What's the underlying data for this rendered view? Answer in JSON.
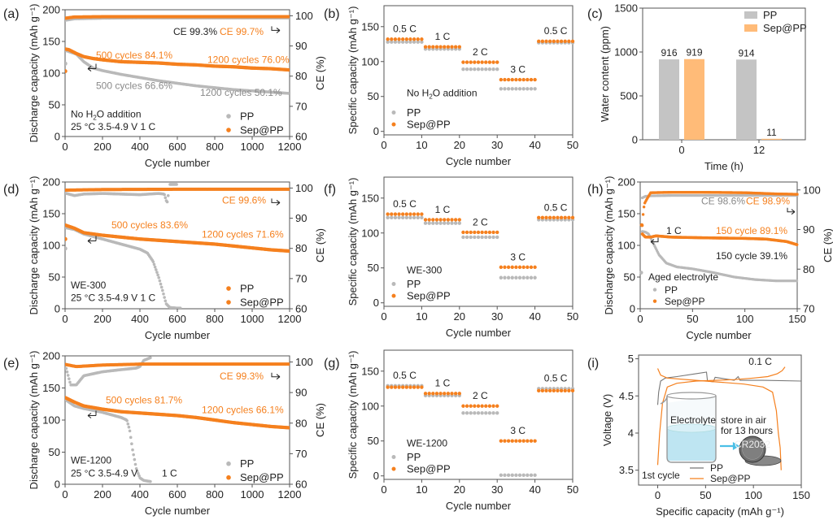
{
  "colors": {
    "pp": "#b9b9b9",
    "sep": "#f5801e",
    "sep_bar": "#ffbb78",
    "pp_bar": "#c4c4c4",
    "text": "#222222",
    "arrow": "#4bbfe6"
  },
  "chart_data": [
    {
      "id": "a",
      "panel_label": "(a)",
      "type": "scatter",
      "xlabel": "Cycle number",
      "ylabel": "Discharge capacity (mAh g-1)",
      "y2label": "CE (%)",
      "xlim": [
        0,
        1200
      ],
      "ylim": [
        0,
        200
      ],
      "y2lim": [
        60,
        102
      ],
      "xticks": [
        0,
        200,
        400,
        600,
        800,
        1000,
        1200
      ],
      "yticks": [
        0,
        50,
        100,
        150,
        200
      ],
      "y2ticks": [
        60,
        70,
        80,
        90,
        100
      ],
      "notes": [
        "No H2O addition",
        "25 °C  3.5-4.9 V  1 C"
      ],
      "annotations": [
        {
          "text": "CE  99.3%",
          "color": "text"
        },
        {
          "text": "CE 99.7%",
          "color": "sep"
        },
        {
          "text": "500 cycles 84.1%",
          "color": "sep"
        },
        {
          "text": "1200 cycles 76.0%",
          "color": "sep"
        },
        {
          "text": "500 cycles 66.6%",
          "color": "pp"
        },
        {
          "text": "1200 cycles  50.1%",
          "color": "pp"
        }
      ],
      "legend": [
        "PP",
        "Sep@PP"
      ],
      "legend_position": "bottom-right",
      "series": [
        {
          "name": "PP capacity",
          "x": [
            1,
            20,
            60,
            100,
            150,
            200,
            300,
            400,
            500,
            600,
            700,
            800,
            900,
            1000,
            1100,
            1200
          ],
          "y": [
            136,
            134,
            130,
            118,
            108,
            104,
            98,
            93,
            88,
            84,
            80,
            77,
            74,
            72,
            70,
            68
          ]
        },
        {
          "name": "Sep@PP capacity",
          "x": [
            1,
            20,
            60,
            100,
            150,
            200,
            300,
            400,
            500,
            600,
            700,
            800,
            900,
            1000,
            1100,
            1200
          ],
          "y": [
            138,
            137,
            131,
            126,
            123,
            121,
            118,
            117,
            116,
            114,
            113,
            111,
            110,
            108,
            107,
            105
          ]
        },
        {
          "name": "PP CE",
          "x": [
            1,
            50,
            200,
            400,
            600,
            800,
            1000,
            1200
          ],
          "y": [
            98.5,
            99.0,
            99.2,
            99.3,
            99.3,
            99.3,
            99.3,
            99.3
          ]
        },
        {
          "name": "Sep@PP CE",
          "x": [
            1,
            50,
            200,
            400,
            600,
            800,
            1000,
            1200
          ],
          "y": [
            99.2,
            99.6,
            99.7,
            99.7,
            99.7,
            99.7,
            99.7,
            99.7
          ]
        }
      ],
      "first_points": {
        "pp": 115,
        "sep": 103
      }
    },
    {
      "id": "b",
      "panel_label": "(b)",
      "type": "scatter",
      "xlabel": "Cycle number",
      "ylabel": "Specific capacity (mAh g-1)",
      "xlim": [
        0,
        50
      ],
      "ylim": [
        -5,
        180
      ],
      "xticks": [
        0,
        10,
        20,
        30,
        40,
        50
      ],
      "yticks": [
        0,
        50,
        100,
        150
      ],
      "notes": [
        "No H2O addition"
      ],
      "rate_labels": [
        "0.5 C",
        "1 C",
        "2 C",
        "3 C",
        "0.5 C"
      ],
      "legend": [
        "PP",
        "Sep@PP"
      ],
      "legend_position": "bottom-left",
      "series": [
        {
          "name": "PP",
          "segments": [
            128,
            118,
            89,
            61,
            127
          ]
        },
        {
          "name": "Sep@PP",
          "segments": [
            132,
            121,
            99,
            74,
            129
          ]
        }
      ]
    },
    {
      "id": "c",
      "panel_label": "(c)",
      "type": "bar",
      "xlabel": "Time (h)",
      "ylabel": "Water content (ppm)",
      "categories": [
        "0",
        "12"
      ],
      "ylim": [
        0,
        1500
      ],
      "yticks": [
        0,
        500,
        1000,
        1500
      ],
      "legend": [
        "PP",
        "Sep@PP"
      ],
      "legend_position": "top-right",
      "series": [
        {
          "name": "PP",
          "values": [
            916,
            914
          ]
        },
        {
          "name": "Sep@PP",
          "values": [
            919,
            11
          ]
        }
      ]
    },
    {
      "id": "d",
      "panel_label": "(d)",
      "type": "scatter",
      "xlabel": "Cycle number",
      "ylabel": "Discharge capacity (mAh g-1)",
      "y2label": "CE (%)",
      "xlim": [
        0,
        1200
      ],
      "ylim": [
        0,
        200
      ],
      "y2lim": [
        60,
        102
      ],
      "xticks": [
        0,
        200,
        400,
        600,
        800,
        1000,
        1200
      ],
      "yticks": [
        0,
        50,
        100,
        150,
        200
      ],
      "y2ticks": [
        60,
        70,
        80,
        90,
        100
      ],
      "notes": [
        "WE-300",
        "25 °C  3.5-4.9 V  1 C"
      ],
      "annotations": [
        {
          "text": "CE 99.6%",
          "color": "sep"
        },
        {
          "text": "500 cycles 83.6%",
          "color": "sep"
        },
        {
          "text": "1200 cycles 71.6%",
          "color": "sep"
        }
      ],
      "legend": [
        "PP",
        "Sep@PP"
      ],
      "legend_position": "bottom-right",
      "series": [
        {
          "name": "PP capacity",
          "x": [
            1,
            50,
            100,
            200,
            300,
            400,
            440,
            470,
            500,
            520,
            540,
            560,
            600,
            620
          ],
          "y": [
            128,
            125,
            118,
            110,
            102,
            94,
            88,
            75,
            50,
            30,
            8,
            2,
            1,
            1
          ]
        },
        {
          "name": "Sep@PP capacity",
          "x": [
            1,
            50,
            100,
            200,
            300,
            400,
            500,
            600,
            700,
            800,
            900,
            1000,
            1100,
            1200
          ],
          "y": [
            132,
            127,
            120,
            116,
            113,
            110,
            108,
            106,
            104,
            102,
            99,
            96,
            93,
            91
          ]
        },
        {
          "name": "PP CE",
          "x": [
            1,
            50,
            100,
            200,
            300,
            400,
            500,
            530,
            545,
            560,
            600
          ],
          "y": [
            98.3,
            97.5,
            98.0,
            98.2,
            98.0,
            97.8,
            98.2,
            98.0,
            95.0,
            101.2,
            101.2
          ]
        },
        {
          "name": "Sep@PP CE",
          "x": [
            1,
            200,
            600,
            1200
          ],
          "y": [
            99.3,
            99.5,
            99.6,
            99.6
          ]
        }
      ],
      "first_points": {
        "pp": 95,
        "sep": 110
      }
    },
    {
      "id": "e",
      "panel_label": "(e)",
      "type": "scatter",
      "xlabel": "Cycle number",
      "ylabel": "Discharge capacity (mAh g-1)",
      "y2label": "CE (%)",
      "xlim": [
        0,
        1200
      ],
      "ylim": [
        0,
        200
      ],
      "y2lim": [
        60,
        102
      ],
      "xticks": [
        0,
        200,
        400,
        600,
        800,
        1000,
        1200
      ],
      "yticks": [
        0,
        50,
        100,
        150,
        200
      ],
      "y2ticks": [
        60,
        70,
        80,
        90,
        100
      ],
      "notes": [
        "WE-1200",
        "25 °C  3.5-4.9 V",
        "1 C"
      ],
      "annotations": [
        {
          "text": "CE 99.3%",
          "color": "sep"
        },
        {
          "text": "500 cycles 81.7%",
          "color": "sep"
        },
        {
          "text": "1200 cycles 66.1%",
          "color": "sep"
        }
      ],
      "legend": [
        "PP",
        "Sep@PP"
      ],
      "legend_position": "bottom-right",
      "series": [
        {
          "name": "PP capacity",
          "x": [
            1,
            50,
            100,
            200,
            300,
            330,
            345,
            360,
            380,
            400,
            420,
            460
          ],
          "y": [
            132,
            122,
            118,
            112,
            104,
            100,
            85,
            55,
            25,
            10,
            6,
            4
          ]
        },
        {
          "name": "Sep@PP capacity",
          "x": [
            1,
            50,
            100,
            200,
            300,
            400,
            500,
            600,
            700,
            800,
            900,
            1000,
            1100,
            1200
          ],
          "y": [
            135,
            128,
            122,
            117,
            113,
            111,
            109,
            107,
            104,
            100,
            96,
            93,
            90,
            88
          ]
        },
        {
          "name": "PP CE",
          "x": [
            1,
            30,
            60,
            100,
            200,
            300,
            380,
            400,
            420,
            460
          ],
          "y": [
            99.0,
            92.5,
            92.5,
            95.5,
            96.8,
            97.5,
            98.0,
            98.5,
            100.5,
            101.5
          ]
        },
        {
          "name": "Sep@PP CE",
          "x": [
            1,
            60,
            200,
            400,
            800,
            1200
          ],
          "y": [
            99.2,
            98.5,
            99.0,
            99.3,
            99.3,
            99.3
          ]
        }
      ]
    },
    {
      "id": "f",
      "panel_label": "(f)",
      "type": "scatter",
      "xlabel": "Cycle number",
      "ylabel": "Specific capacity (mAh g-1)",
      "xlim": [
        0,
        50
      ],
      "ylim": [
        -5,
        180
      ],
      "xticks": [
        0,
        10,
        20,
        30,
        40,
        50
      ],
      "yticks": [
        0,
        50,
        100,
        150
      ],
      "notes": [
        "WE-300"
      ],
      "rate_labels": [
        "0.5 C",
        "1 C",
        "2 C",
        "3 C",
        "0.5 C"
      ],
      "legend": [
        "PP",
        "Sep@PP"
      ],
      "legend_position": "bottom-left",
      "series": [
        {
          "name": "PP",
          "segments": [
            122,
            114,
            94,
            36,
            119
          ]
        },
        {
          "name": "Sep@PP",
          "segments": [
            127,
            119,
            101,
            51,
            122
          ]
        }
      ]
    },
    {
      "id": "g",
      "panel_label": "(g)",
      "type": "scatter",
      "xlabel": "Cycle number",
      "ylabel": "Specific capacity (mAh g-1)",
      "xlim": [
        0,
        50
      ],
      "ylim": [
        -5,
        180
      ],
      "xticks": [
        0,
        10,
        20,
        30,
        40,
        50
      ],
      "yticks": [
        0,
        50,
        100,
        150
      ],
      "notes": [
        "WE-1200"
      ],
      "rate_labels": [
        "0.5 C",
        "1 C",
        "2 C",
        "3 C",
        "0.5 C"
      ],
      "legend": [
        "PP",
        "Sep@PP"
      ],
      "legend_position": "bottom-left",
      "series": [
        {
          "name": "PP",
          "segments": [
            129,
            115,
            90,
            1,
            125
          ]
        },
        {
          "name": "Sep@PP",
          "segments": [
            127,
            118,
            100,
            50,
            122
          ]
        }
      ]
    },
    {
      "id": "h",
      "panel_label": "(h)",
      "type": "scatter",
      "xlabel": "Cycle number",
      "ylabel": "Discharge capacity (mAh g-1)",
      "y2label": "CE (%)",
      "xlim": [
        0,
        150
      ],
      "ylim": [
        0,
        200
      ],
      "y2lim": [
        70,
        102
      ],
      "xticks": [
        0,
        50,
        100,
        150
      ],
      "yticks": [
        0,
        50,
        100,
        150,
        200
      ],
      "y2ticks": [
        70,
        80,
        90,
        100
      ],
      "notes": [
        "Aged electrolyte"
      ],
      "annotations": [
        {
          "text": "CE 98.6%",
          "color": "pp"
        },
        {
          "text": "CE 98.9%",
          "color": "sep"
        },
        {
          "text": "1 C",
          "color": "text"
        },
        {
          "text": "150 cycle  89.1%",
          "color": "sep"
        },
        {
          "text": "150 cycle  39.1%",
          "color": "text"
        }
      ],
      "legend": [
        "PP",
        "Sep@PP"
      ],
      "legend_position": "bottom-left",
      "series": [
        {
          "name": "PP capacity",
          "x": [
            2,
            5,
            8,
            12,
            18,
            25,
            35,
            50,
            70,
            90,
            110,
            130,
            150
          ],
          "y": [
            122,
            121,
            118,
            105,
            85,
            72,
            66,
            63,
            57,
            50,
            46,
            44,
            44
          ]
        },
        {
          "name": "Sep@PP capacity",
          "x": [
            2,
            5,
            10,
            15,
            30,
            60,
            100,
            120,
            140,
            150
          ],
          "y": [
            118,
            113,
            113,
            115,
            113,
            112,
            111,
            110,
            106,
            101
          ]
        },
        {
          "name": "PP CE",
          "x": [
            2,
            5,
            10,
            30,
            60,
            100,
            150
          ],
          "y": [
            98.0,
            98.4,
            98.5,
            98.6,
            98.6,
            98.6,
            98.6
          ]
        },
        {
          "name": "Sep@PP CE",
          "x": [
            2,
            3,
            4,
            6,
            10,
            30,
            60,
            100,
            130,
            150
          ],
          "y": [
            91.0,
            94.5,
            96.5,
            97.5,
            99.3,
            99.4,
            99.4,
            99.3,
            99.0,
            98.9
          ]
        }
      ],
      "first_points": {
        "pp": 57,
        "sep": 132
      }
    },
    {
      "id": "i",
      "panel_label": "(i)",
      "type": "line",
      "xlabel": "Specific capacity (mAh g-1)",
      "ylabel": "Voltage (V)",
      "xlim": [
        -20,
        150
      ],
      "ylim": [
        3.3,
        5.05
      ],
      "xticks": [
        0,
        50,
        100,
        150
      ],
      "yticks": [
        3.5,
        4.0,
        4.5,
        5.0
      ],
      "notes": [
        "0.1 C",
        "1st cycle"
      ],
      "inset": {
        "beaker_label": "Electrolyte",
        "arrow_text_1": "store in air",
        "arrow_text_2": "for 13 hours",
        "coin_cell_text": "CR2032"
      },
      "legend": [
        "PP",
        "Sep@PP"
      ],
      "legend_position": "bottom-center",
      "series": [
        {
          "name": "PP charge",
          "x": [
            0,
            1,
            3,
            8,
            20,
            40,
            51,
            52,
            58,
            60,
            80,
            84,
            86,
            110,
            150
          ],
          "y": [
            4.38,
            4.55,
            4.7,
            4.74,
            4.76,
            4.8,
            4.82,
            4.7,
            4.69,
            4.75,
            4.71,
            4.76,
            4.71,
            4.71,
            4.7
          ]
        },
        {
          "name": "Sep@PP charge",
          "x": [
            0,
            2,
            5,
            10,
            20,
            40,
            60,
            80,
            100,
            115,
            125,
            130,
            133
          ],
          "y": [
            3.57,
            4.0,
            4.4,
            4.62,
            4.67,
            4.7,
            4.71,
            4.72,
            4.74,
            4.76,
            4.8,
            4.84,
            4.89
          ]
        },
        {
          "name": "Sep@PP discharge",
          "x": [
            0,
            3,
            10,
            40,
            70,
            90,
            110,
            120,
            124,
            126,
            128,
            129
          ],
          "y": [
            4.87,
            4.78,
            4.74,
            4.71,
            4.68,
            4.66,
            4.62,
            4.55,
            4.3,
            4.0,
            3.8,
            3.5
          ]
        }
      ]
    }
  ]
}
